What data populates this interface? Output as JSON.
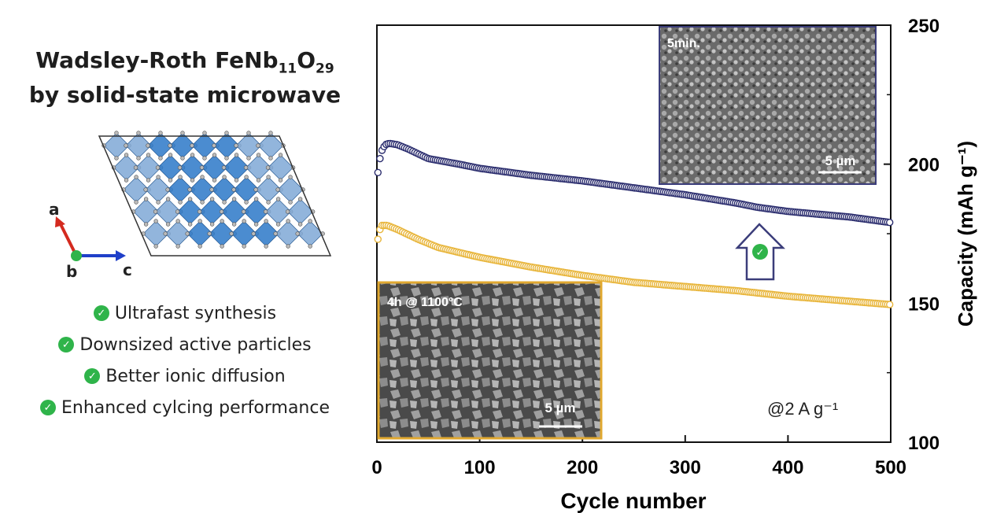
{
  "structure_panel": {
    "title_line1_prefix": "Wadsley-Roth FeNb",
    "title_sub1": "11",
    "title_o": "O",
    "title_sub2": "29",
    "title_line2": "by solid-state microwave",
    "axis_a": "a",
    "axis_b": "b",
    "axis_c": "c",
    "benefits": [
      "Ultrafast synthesis",
      "Downsized active particles",
      "Better ionic diffusion",
      "Enhanced cylcing performance"
    ]
  },
  "colors": {
    "microwave_series": "#2b2d6e",
    "conventional_series": "#e8b53a",
    "check_green": "#2fb44a",
    "octahedron_light": "#7fa8d6",
    "octahedron_dark": "#2b78c8",
    "axis_a_color": "#d42a1f",
    "axis_c_color": "#1f3fc9"
  },
  "chart_data": {
    "type": "scatter",
    "xlabel": "Cycle number",
    "ylabel": "Capacity (mAh g⁻¹)",
    "xlim": [
      0,
      500
    ],
    "ylim": [
      100,
      250
    ],
    "x_ticks": [
      0,
      100,
      200,
      300,
      400,
      500
    ],
    "y_ticks": [
      100,
      150,
      200,
      250
    ],
    "y_axis_side": "right",
    "annotation": "@2 A g⁻¹",
    "series": [
      {
        "color": "#2b2d6e",
        "marker": "open-circle",
        "points": [
          [
            1,
            197
          ],
          [
            3,
            202
          ],
          [
            5,
            205
          ],
          [
            8,
            207
          ],
          [
            12,
            207.5
          ],
          [
            20,
            207
          ],
          [
            30,
            205.5
          ],
          [
            50,
            202
          ],
          [
            80,
            200
          ],
          [
            100,
            198.5
          ],
          [
            150,
            196
          ],
          [
            200,
            194
          ],
          [
            250,
            191.5
          ],
          [
            300,
            189
          ],
          [
            350,
            186
          ],
          [
            370,
            184.5
          ],
          [
            400,
            183
          ],
          [
            430,
            182
          ],
          [
            460,
            181
          ],
          [
            480,
            180
          ],
          [
            500,
            179
          ]
        ]
      },
      {
        "color": "#e8b53a",
        "marker": "open-circle",
        "points": [
          [
            1,
            173
          ],
          [
            3,
            176.5
          ],
          [
            5,
            178
          ],
          [
            10,
            178
          ],
          [
            20,
            176.5
          ],
          [
            40,
            173
          ],
          [
            60,
            170
          ],
          [
            100,
            166.5
          ],
          [
            150,
            163
          ],
          [
            200,
            160
          ],
          [
            250,
            157.5
          ],
          [
            300,
            156
          ],
          [
            350,
            154.5
          ],
          [
            400,
            152.5
          ],
          [
            450,
            151
          ],
          [
            500,
            149.5
          ]
        ]
      }
    ]
  },
  "insets": [
    {
      "label": "5min.",
      "scale_bar": "5 µm",
      "border_color": "#3b3d7a"
    },
    {
      "label": "4h @ 1100°C",
      "scale_bar": "5 µm",
      "border_color": "#e0a830"
    }
  ]
}
